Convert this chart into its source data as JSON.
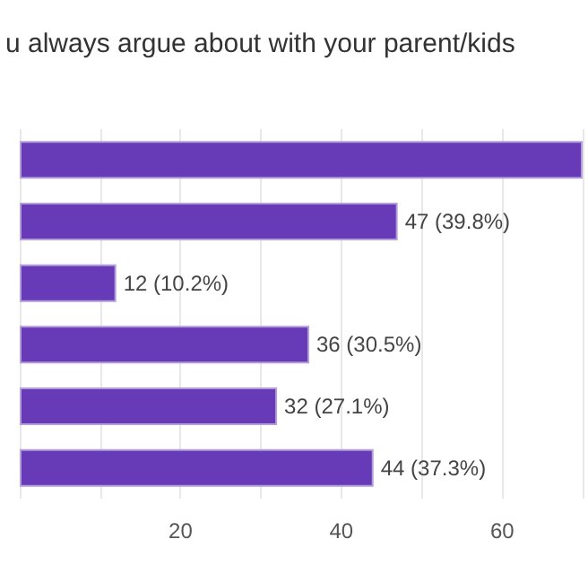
{
  "chart_data": {
    "type": "bar",
    "orientation": "horizontal",
    "title": "u always argue about with your parent/kids",
    "categories": [
      null,
      null,
      null,
      null,
      null,
      null
    ],
    "values": [
      70,
      47,
      12,
      36,
      32,
      44
    ],
    "value_labels": [
      null,
      "47 (39.8%)",
      "12 (10.2%)",
      "36 (30.5%)",
      "32 (27.1%)",
      "44 (37.3%)"
    ],
    "color": "#673ab7",
    "xlim": [
      0,
      70
    ],
    "xticks": [
      {
        "value": 0,
        "label": null
      },
      {
        "value": 10,
        "label": null
      },
      20,
      {
        "value": 30,
        "label": null
      },
      40,
      {
        "value": 50,
        "label": null
      },
      60,
      {
        "value": 70,
        "label": null
      }
    ],
    "grid": "x"
  }
}
